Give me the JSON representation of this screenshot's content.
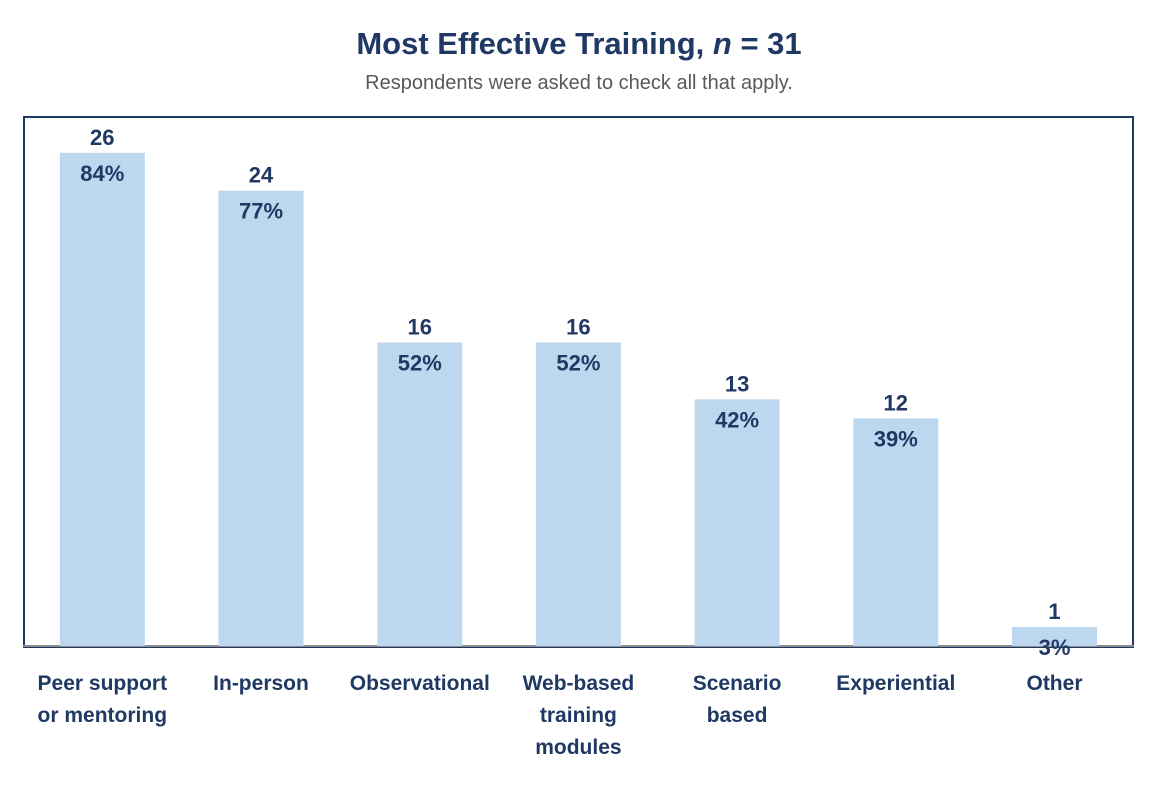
{
  "header": {
    "title_main": "Most Effective Training,",
    "title_n_symbol": "n",
    "title_n_value": "= 31",
    "subtitle": "Respondents were asked to check all that apply."
  },
  "chart_data": {
    "type": "bar",
    "title": "Most Effective Training, n = 31",
    "subtitle": "Respondents were asked to check all that apply.",
    "categories": [
      [
        "Peer support",
        "or mentoring"
      ],
      [
        "In-person"
      ],
      [
        "Observational"
      ],
      [
        "Web-based",
        "training",
        "modules"
      ],
      [
        "Scenario",
        "based"
      ],
      [
        "Experiential"
      ],
      [
        "Other"
      ]
    ],
    "values": [
      26,
      24,
      16,
      16,
      13,
      12,
      1
    ],
    "percent_labels": [
      "84%",
      "77%",
      "52%",
      "52%",
      "42%",
      "39%",
      "3%"
    ],
    "n": 31,
    "ylim": [
      0,
      31
    ],
    "xlabel": "",
    "ylabel": "",
    "grid": false,
    "colors": {
      "bar": "#bdd7ee",
      "text": "#1f3864",
      "frame": "#1f3864",
      "axis": "#8c8c8c"
    }
  }
}
